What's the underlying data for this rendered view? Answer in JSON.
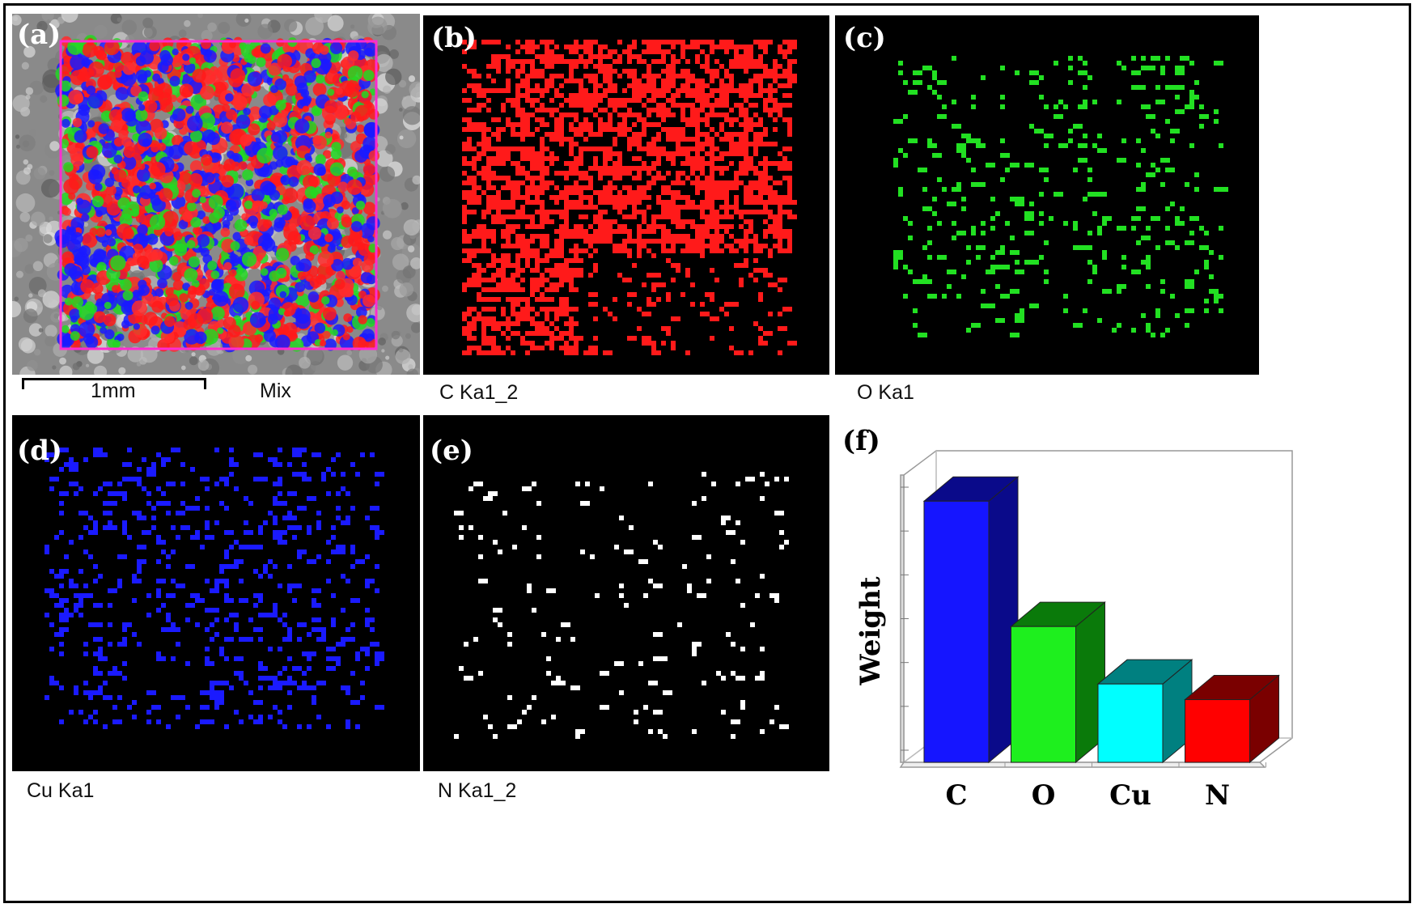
{
  "panels": {
    "a": {
      "label": "(a)",
      "caption": "Mix",
      "scalebar": "1mm"
    },
    "b": {
      "label": "(b)",
      "caption": "C Ka1_2",
      "color": "#ff1a1a"
    },
    "c": {
      "label": "(c)",
      "caption": "O Ka1",
      "color": "#22e022"
    },
    "d": {
      "label": "(d)",
      "caption": "Cu Ka1",
      "color": "#1a1aff"
    },
    "e": {
      "label": "(e)",
      "caption": "N Ka1_2",
      "color": "#ffffff"
    },
    "f": {
      "label": "(f)"
    }
  },
  "chart_data": {
    "type": "bar",
    "categories": [
      "C",
      "O",
      "Cu",
      "N"
    ],
    "values": [
      100,
      52,
      30,
      24
    ],
    "colors": [
      "#1515ff",
      "#1eef1e",
      "#00ffff",
      "#ff0000"
    ],
    "side_colors": [
      "#0a0a8a",
      "#0a7a0a",
      "#008080",
      "#7a0000"
    ],
    "ylabel": "Weight",
    "xlabel": "",
    "title": "",
    "ylim": [
      0,
      110
    ],
    "y_ticks": 7,
    "grid": false,
    "style": "3d"
  }
}
